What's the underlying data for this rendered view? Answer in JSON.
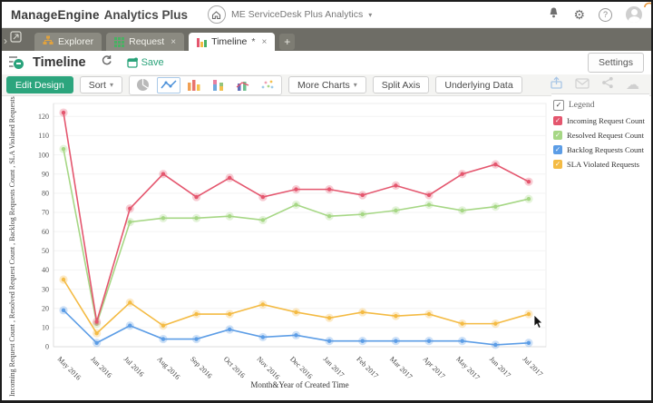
{
  "header": {
    "logo_bold": "ManageEngine",
    "logo_light": "Analytics Plus",
    "workspace": "ME ServiceDesk Plus Analytics"
  },
  "icons": {
    "caret_down": "▾",
    "chevron_right": "›",
    "close": "×",
    "check": "✓",
    "plus": "+",
    "gear": "⚙",
    "cloud": "☁",
    "help": "?"
  },
  "tabs": {
    "explorer": {
      "label": "Explorer"
    },
    "request": {
      "label": "Request"
    },
    "timeline": {
      "label": "Timeline",
      "modified": "*"
    }
  },
  "view": {
    "title": "Timeline",
    "save_label": "Save",
    "settings_label": "Settings"
  },
  "toolbar": {
    "edit_design": "Edit Design",
    "sort": "Sort",
    "more_charts": "More Charts",
    "split_axis": "Split Axis",
    "underlying_data": "Underlying Data"
  },
  "legend": {
    "title": "Legend"
  },
  "chart_data": {
    "type": "line",
    "x": [
      "May 2016",
      "Jun 2016",
      "Jul 2016",
      "Aug 2016",
      "Sep 2016",
      "Oct 2016",
      "Nov 2016",
      "Dec 2016",
      "Jan 2017",
      "Feb 2017",
      "Mar 2017",
      "Apr 2017",
      "May 2017",
      "Jun 2017",
      "Jul 2017"
    ],
    "series": [
      {
        "name": "Incoming Request Count",
        "color": "#e4566e",
        "values": [
          122,
          13,
          72,
          90,
          78,
          88,
          78,
          82,
          82,
          79,
          84,
          79,
          90,
          95,
          86
        ]
      },
      {
        "name": "Resolved Request Count",
        "color": "#a6d785",
        "values": [
          103,
          12,
          65,
          67,
          67,
          68,
          66,
          74,
          68,
          69,
          71,
          74,
          71,
          73,
          77
        ]
      },
      {
        "name": "Backlog Requests Count",
        "color": "#5c9de6",
        "values": [
          19,
          2,
          11,
          4,
          4,
          9,
          5,
          6,
          3,
          3,
          3,
          3,
          3,
          1,
          2
        ]
      },
      {
        "name": "SLA Violated Requests",
        "color": "#f4bb44",
        "values": [
          35,
          7,
          23,
          11,
          17,
          17,
          22,
          18,
          15,
          18,
          16,
          17,
          12,
          12,
          17
        ]
      }
    ],
    "xlabel": "Month&Year of Created Time",
    "ylabel": "Incoming Request Count , Resolved Request Count , Backlog Requests Count , SLA Violated Requests",
    "ylim": [
      0,
      120
    ],
    "ytick_step": 10,
    "grid": true,
    "legend_position": "right"
  }
}
